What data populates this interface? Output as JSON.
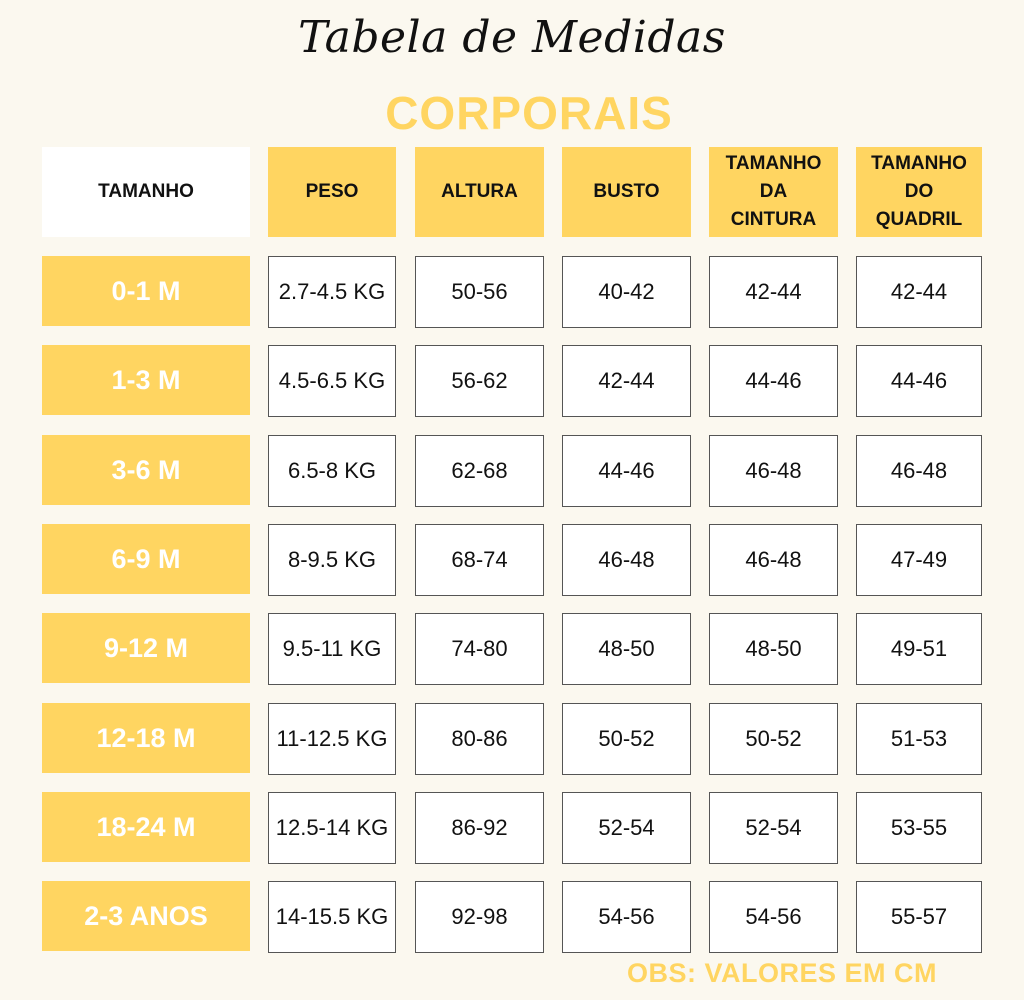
{
  "title": "Tabela de Medidas",
  "subtitle": "CORPORAIS",
  "colors": {
    "accent": "#ffd561",
    "background": "#fbf8ef",
    "text": "#111111"
  },
  "table": {
    "headers": [
      "TAMANHO",
      "PESO",
      "ALTURA",
      "BUSTO",
      "TAMANHO DA CINTURA",
      "TAMANHO DO QUADRIL"
    ],
    "rows": [
      {
        "size": "0-1 M",
        "values": [
          "2.7-4.5 KG",
          "50-56",
          "40-42",
          "42-44",
          "42-44"
        ]
      },
      {
        "size": "1-3 M",
        "values": [
          "4.5-6.5 KG",
          "56-62",
          "42-44",
          "44-46",
          "44-46"
        ]
      },
      {
        "size": "3-6 M",
        "values": [
          "6.5-8 KG",
          "62-68",
          "44-46",
          "46-48",
          "46-48"
        ]
      },
      {
        "size": "6-9 M",
        "values": [
          "8-9.5 KG",
          "68-74",
          "46-48",
          "46-48",
          "47-49"
        ]
      },
      {
        "size": "9-12 M",
        "values": [
          "9.5-11 KG",
          "74-80",
          "48-50",
          "48-50",
          "49-51"
        ]
      },
      {
        "size": "12-18 M",
        "values": [
          "11-12.5 KG",
          "80-86",
          "50-52",
          "50-52",
          "51-53"
        ]
      },
      {
        "size": "18-24 M",
        "values": [
          "12.5-14 KG",
          "86-92",
          "52-54",
          "52-54",
          "53-55"
        ]
      },
      {
        "size": "2-3 ANOS",
        "values": [
          "14-15.5 KG",
          "92-98",
          "54-56",
          "54-56",
          "55-57"
        ]
      }
    ]
  },
  "note": "OBS: VALORES EM CM"
}
